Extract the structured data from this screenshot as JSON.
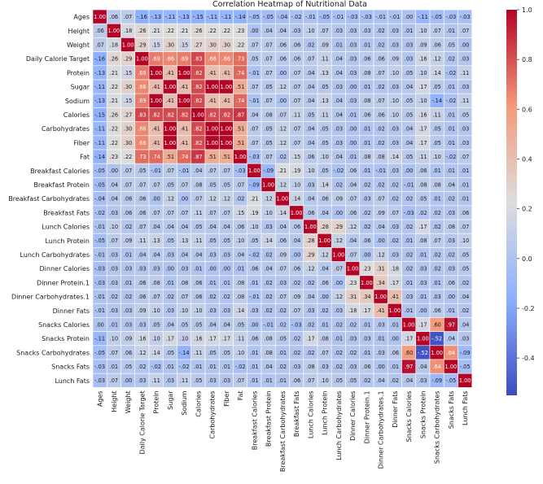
{
  "chart_data": {
    "type": "heatmap",
    "title": "Correlation Heatmap of Nutritional Data",
    "labels": [
      "Ages",
      "Height",
      "Weight",
      "Daily Calorie Target",
      "Protein",
      "Sugar",
      "Sodium",
      "Calories",
      "Carbohydrates",
      "Fiber",
      "Fat",
      "Breakfast Calories",
      "Breakfast Protein",
      "Breakfast Carbohydrates",
      "Breakfast Fats",
      "Lunch Calories",
      "Lunch Protein",
      "Lunch Carbohydrates",
      "Dinner Calories",
      "Dinner Protein.1",
      "Dinner Carbohydrates.1",
      "Dinner Fats",
      "Snacks Calories",
      "Snacks Protein",
      "Snacks Carbohydrates",
      "Snacks Fats",
      "Lunch Fats"
    ],
    "colorbar": {
      "min": -0.55,
      "max": 1.0,
      "ticks": [
        1.0,
        0.8,
        0.6,
        0.4,
        0.2,
        0.0,
        -0.2,
        -0.4
      ],
      "tick_labels": [
        "1.0",
        "0.8",
        "0.6",
        "0.4",
        "0.2",
        "0.0",
        "-0.2",
        "-0.4"
      ],
      "colormap": "coolwarm"
    },
    "matrix": [
      [
        1.0,
        0.06,
        0.07,
        -0.16,
        -0.13,
        -0.11,
        -0.13,
        -0.15,
        -0.11,
        -0.11,
        -0.14,
        -0.05,
        -0.05,
        -0.04,
        -0.02,
        -0.01,
        -0.05,
        -0.01,
        -0.03,
        -0.03,
        -0.01,
        -0.01,
        -0.0,
        -0.11,
        -0.05,
        -0.03,
        -0.03
      ],
      [
        0.06,
        1.0,
        0.18,
        0.26,
        0.21,
        0.22,
        0.21,
        0.26,
        0.22,
        0.22,
        0.23,
        0.0,
        0.04,
        0.04,
        0.03,
        0.1,
        0.07,
        0.03,
        0.03,
        0.03,
        0.02,
        0.03,
        0.01,
        0.1,
        0.07,
        0.01,
        0.07
      ],
      [
        0.07,
        0.18,
        1.0,
        0.29,
        0.15,
        0.3,
        0.15,
        0.27,
        0.3,
        0.3,
        0.22,
        0.07,
        0.07,
        0.06,
        0.06,
        0.02,
        0.09,
        0.01,
        0.03,
        0.01,
        0.02,
        0.03,
        0.03,
        0.09,
        0.06,
        0.05,
        0.0
      ],
      [
        -0.16,
        0.26,
        0.29,
        1.0,
        0.69,
        0.66,
        0.69,
        0.83,
        0.66,
        0.66,
        0.73,
        0.05,
        0.07,
        0.06,
        0.06,
        0.07,
        0.11,
        0.04,
        0.03,
        0.06,
        0.06,
        0.09,
        0.03,
        0.16,
        0.12,
        0.02,
        0.03
      ],
      [
        -0.13,
        0.21,
        0.15,
        0.69,
        1.0,
        0.41,
        1.0,
        0.82,
        0.41,
        0.41,
        0.74,
        -0.01,
        0.07,
        0.0,
        0.07,
        0.04,
        0.13,
        0.04,
        0.03,
        0.08,
        0.07,
        0.1,
        0.05,
        0.1,
        0.14,
        -0.02,
        0.11
      ],
      [
        -0.11,
        0.22,
        0.3,
        0.66,
        0.41,
        1.0,
        0.41,
        0.82,
        1.0,
        1.0,
        0.51,
        0.07,
        0.05,
        0.12,
        0.07,
        0.04,
        0.05,
        0.03,
        0.0,
        0.01,
        0.02,
        0.03,
        0.04,
        0.17,
        0.05,
        0.01,
        0.03
      ],
      [
        -0.13,
        0.21,
        0.15,
        0.69,
        1.0,
        0.41,
        1.0,
        0.82,
        0.41,
        0.41,
        0.74,
        -0.01,
        0.07,
        0.0,
        0.07,
        0.04,
        0.13,
        0.04,
        0.03,
        0.08,
        0.07,
        0.1,
        0.05,
        0.1,
        -0.14,
        -0.02,
        0.11
      ],
      [
        -0.15,
        0.26,
        0.27,
        0.83,
        0.82,
        0.82,
        0.82,
        1.0,
        0.82,
        0.82,
        0.87,
        0.04,
        0.08,
        0.07,
        0.11,
        0.05,
        0.11,
        0.04,
        0.01,
        0.06,
        0.06,
        0.1,
        0.05,
        0.16,
        0.11,
        0.01,
        0.05
      ],
      [
        -0.11,
        0.22,
        0.3,
        0.66,
        0.41,
        1.0,
        0.41,
        0.82,
        1.0,
        1.0,
        0.51,
        0.07,
        0.05,
        0.12,
        0.07,
        0.04,
        0.05,
        0.03,
        0.0,
        0.01,
        0.02,
        0.03,
        0.04,
        0.17,
        0.05,
        0.01,
        0.03
      ],
      [
        -0.11,
        0.22,
        0.3,
        0.66,
        0.41,
        1.0,
        0.41,
        0.82,
        1.0,
        1.0,
        0.51,
        0.07,
        0.05,
        0.12,
        0.07,
        0.04,
        0.05,
        0.03,
        0.0,
        0.01,
        0.02,
        0.03,
        0.04,
        0.17,
        0.05,
        0.01,
        0.03
      ],
      [
        -0.14,
        0.23,
        0.22,
        0.73,
        0.74,
        0.51,
        0.74,
        0.87,
        0.51,
        0.51,
        1.0,
        -0.03,
        0.07,
        0.02,
        0.15,
        0.06,
        0.1,
        0.04,
        0.01,
        0.08,
        0.08,
        0.14,
        0.05,
        0.11,
        0.1,
        -0.02,
        0.07
      ],
      [
        -0.05,
        0.0,
        0.07,
        0.05,
        -0.01,
        0.07,
        -0.01,
        0.04,
        0.07,
        0.07,
        -0.03,
        1.0,
        -0.09,
        0.21,
        0.19,
        0.1,
        0.05,
        -0.02,
        0.06,
        0.01,
        -0.01,
        0.03,
        0.0,
        0.06,
        0.01,
        0.01,
        0.01
      ],
      [
        -0.05,
        0.04,
        0.07,
        0.07,
        0.07,
        0.05,
        0.07,
        0.08,
        0.05,
        0.05,
        0.07,
        -0.09,
        1.0,
        0.12,
        0.1,
        0.03,
        0.14,
        0.02,
        0.04,
        0.02,
        0.02,
        0.02,
        -0.01,
        0.08,
        0.08,
        0.04,
        0.01
      ],
      [
        -0.04,
        0.04,
        0.06,
        0.06,
        0.0,
        0.12,
        0.0,
        0.07,
        0.12,
        0.12,
        0.02,
        0.21,
        0.12,
        1.0,
        0.14,
        0.04,
        0.06,
        0.09,
        0.07,
        0.03,
        0.07,
        0.02,
        0.02,
        0.05,
        0.01,
        0.02,
        0.01
      ],
      [
        -0.02,
        0.03,
        0.06,
        0.06,
        0.07,
        0.07,
        0.07,
        0.11,
        0.07,
        0.07,
        0.15,
        0.19,
        0.1,
        0.14,
        1.0,
        0.06,
        0.04,
        0.0,
        0.06,
        0.02,
        0.09,
        0.07,
        -0.03,
        0.02,
        0.02,
        0.03,
        0.06
      ],
      [
        -0.01,
        0.1,
        0.02,
        0.07,
        0.04,
        0.04,
        0.04,
        0.05,
        0.04,
        0.04,
        0.06,
        0.1,
        0.03,
        0.04,
        0.06,
        1.0,
        0.28,
        0.29,
        0.12,
        0.02,
        0.04,
        0.03,
        0.02,
        0.17,
        0.02,
        0.08,
        0.07
      ],
      [
        -0.05,
        0.07,
        0.09,
        0.11,
        0.13,
        0.05,
        0.13,
        0.11,
        0.05,
        0.05,
        0.1,
        0.05,
        0.14,
        0.06,
        0.04,
        0.28,
        1.0,
        0.12,
        0.04,
        0.06,
        0.0,
        0.02,
        0.01,
        0.08,
        0.07,
        0.03,
        0.1
      ],
      [
        -0.01,
        0.03,
        0.01,
        0.04,
        0.04,
        0.03,
        0.04,
        0.04,
        0.03,
        0.03,
        0.04,
        -0.02,
        0.02,
        0.09,
        0.0,
        0.29,
        0.12,
        1.0,
        0.07,
        0.0,
        0.12,
        0.03,
        0.02,
        0.01,
        0.02,
        0.02,
        0.05
      ],
      [
        -0.03,
        0.03,
        0.03,
        0.03,
        0.03,
        0.0,
        0.03,
        0.01,
        0.0,
        0.0,
        0.01,
        0.06,
        0.04,
        0.07,
        0.06,
        0.12,
        0.04,
        0.07,
        1.0,
        0.23,
        0.31,
        0.18,
        0.02,
        0.03,
        0.02,
        0.03,
        0.05
      ],
      [
        -0.03,
        0.03,
        0.01,
        0.06,
        0.08,
        0.01,
        0.08,
        0.06,
        0.01,
        0.01,
        0.08,
        0.01,
        0.02,
        0.03,
        0.02,
        0.02,
        0.06,
        0.0,
        0.23,
        1.0,
        0.34,
        0.17,
        0.01,
        0.03,
        0.01,
        0.06,
        0.02
      ],
      [
        -0.01,
        0.02,
        0.02,
        0.06,
        0.07,
        0.02,
        0.07,
        0.06,
        0.02,
        0.02,
        0.08,
        -0.01,
        0.02,
        0.07,
        0.09,
        0.04,
        0.0,
        0.12,
        0.31,
        0.34,
        1.0,
        0.41,
        0.03,
        0.01,
        0.03,
        0.0,
        0.04
      ],
      [
        -0.01,
        0.03,
        0.03,
        0.09,
        0.1,
        0.03,
        0.1,
        0.1,
        0.03,
        0.03,
        0.14,
        0.03,
        0.02,
        0.02,
        0.07,
        0.03,
        0.02,
        0.03,
        0.18,
        0.17,
        0.41,
        1.0,
        0.01,
        0.0,
        0.06,
        0.01,
        0.02
      ],
      [
        -0.0,
        0.01,
        0.03,
        0.03,
        0.05,
        0.04,
        0.05,
        0.05,
        0.04,
        0.04,
        0.05,
        0.0,
        -0.01,
        0.02,
        -0.03,
        0.02,
        0.01,
        0.02,
        0.02,
        0.01,
        0.03,
        0.01,
        1.0,
        0.17,
        0.6,
        0.97,
        0.04
      ],
      [
        -0.11,
        0.1,
        0.09,
        0.16,
        0.1,
        0.17,
        0.1,
        0.16,
        0.17,
        0.17,
        0.11,
        0.06,
        0.08,
        0.05,
        0.02,
        0.17,
        0.08,
        0.01,
        0.03,
        0.03,
        0.01,
        0.0,
        0.17,
        1.0,
        -0.52,
        0.04,
        0.03
      ],
      [
        -0.05,
        0.07,
        0.06,
        0.12,
        0.14,
        0.05,
        -0.14,
        0.11,
        0.05,
        0.05,
        0.1,
        0.01,
        0.08,
        0.01,
        0.02,
        0.02,
        0.07,
        0.02,
        0.02,
        0.01,
        0.03,
        0.06,
        0.6,
        -0.52,
        1.0,
        0.64,
        -0.09
      ],
      [
        -0.03,
        0.01,
        0.05,
        0.02,
        -0.02,
        0.01,
        -0.02,
        0.01,
        0.01,
        0.01,
        -0.02,
        0.01,
        0.04,
        0.02,
        0.03,
        0.08,
        0.03,
        0.02,
        0.03,
        0.06,
        0.0,
        0.01,
        0.97,
        0.04,
        0.64,
        1.0,
        -0.05
      ],
      [
        -0.03,
        0.07,
        0.0,
        0.03,
        0.11,
        0.03,
        0.11,
        0.05,
        0.03,
        0.03,
        0.07,
        0.01,
        0.01,
        0.01,
        0.06,
        0.07,
        0.1,
        0.05,
        0.05,
        0.02,
        0.04,
        0.02,
        0.04,
        0.03,
        -0.09,
        -0.05,
        1.0
      ]
    ]
  }
}
